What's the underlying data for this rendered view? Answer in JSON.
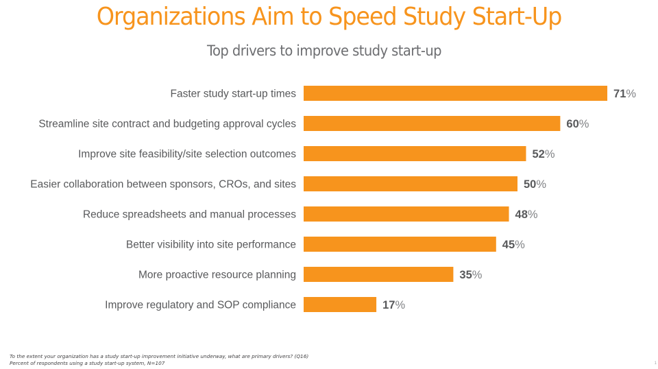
{
  "slide": {
    "title": "Organizations Aim to Speed Study Start-Up",
    "subtitle": "Top drivers to improve study start-up",
    "footnotes": [
      "To the extent your organization has a study start-up improvement initiative underway, what are primary drivers? (Q16)",
      "Percent of respondents using a study start-up system, N=107"
    ],
    "page_number": "1",
    "colors": {
      "accent": "#F7941D",
      "bar": "#F7941D",
      "label_text": "#58595B"
    }
  },
  "chart_data": {
    "type": "bar",
    "orientation": "horizontal",
    "title": "Top drivers to improve study start-up",
    "xlabel": "",
    "ylabel": "",
    "unit": "%",
    "xlim": [
      0,
      71
    ],
    "grid": false,
    "legend": "none",
    "categories": [
      "Faster study start-up times",
      "Streamline site contract and budgeting approval cycles",
      "Improve site feasibility/site selection outcomes",
      "Easier collaboration between sponsors, CROs, and sites",
      "Reduce spreadsheets and manual processes",
      "Better visibility into site performance",
      "More proactive resource planning",
      "Improve regulatory and SOP compliance"
    ],
    "values": [
      71,
      60,
      52,
      50,
      48,
      45,
      35,
      17
    ]
  }
}
